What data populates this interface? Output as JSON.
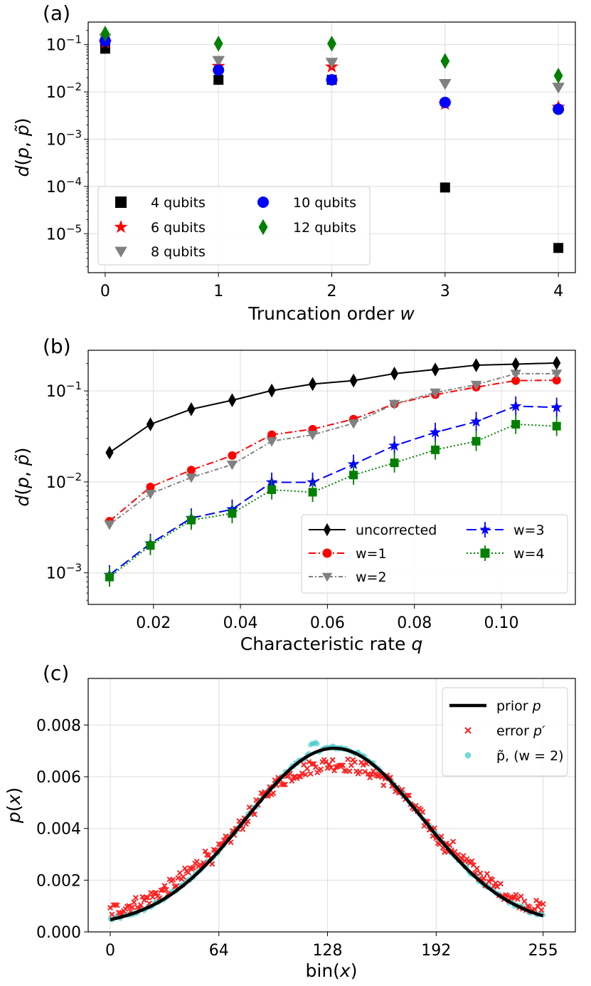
{
  "chart_data": [
    {
      "panel": "(a)",
      "type": "scatter",
      "xlabel_text": "Truncation order ",
      "xlabel_var": "w",
      "ylabel": "d(p, p̃)",
      "yscale": "log",
      "ylim": [
        1.5e-06,
        0.3
      ],
      "xlim": [
        -0.15,
        4.15
      ],
      "xticks": [
        0,
        1,
        2,
        3,
        4
      ],
      "yticks_exp": [
        -5,
        -4,
        -3,
        -2,
        -1
      ],
      "grid": true,
      "legend_position": "lower-left",
      "x": [
        0,
        1,
        2,
        3,
        4
      ],
      "series": [
        {
          "name": "4 qubits",
          "marker": "square",
          "color": "#000000",
          "values": [
            0.082,
            0.018,
            0.018,
            9.5e-05,
            5e-06
          ]
        },
        {
          "name": "6 qubits",
          "marker": "star",
          "color": "#ff0000",
          "values": [
            0.11,
            0.035,
            0.034,
            0.0055,
            0.0048
          ]
        },
        {
          "name": "8 qubits",
          "marker": "triangle",
          "color": "#808080",
          "values": [
            0.135,
            0.046,
            0.042,
            0.015,
            0.0125
          ]
        },
        {
          "name": "10 qubits",
          "marker": "circle",
          "color": "#0000ff",
          "values": [
            0.12,
            0.029,
            0.018,
            0.006,
            0.0043
          ]
        },
        {
          "name": "12 qubits",
          "marker": "diamond",
          "color": "#008000",
          "values": [
            0.17,
            0.105,
            0.105,
            0.045,
            0.022
          ]
        }
      ]
    },
    {
      "panel": "(b)",
      "type": "line",
      "xlabel_text": "Characteristic rate ",
      "xlabel_var": "q",
      "ylabel": "d(p, p̃)",
      "yscale": "log",
      "ylim": [
        0.00045,
        0.28
      ],
      "xlim": [
        0.005,
        0.117
      ],
      "xticks": [
        0.02,
        0.04,
        0.06,
        0.08,
        0.1
      ],
      "xtick_labels": [
        "0.02",
        "0.04",
        "0.06",
        "0.08",
        "0.10"
      ],
      "yticks_exp": [
        -3,
        -2,
        -1
      ],
      "grid": true,
      "legend_position": "lower-right",
      "x": [
        0.0099,
        0.0193,
        0.0287,
        0.0381,
        0.0472,
        0.0566,
        0.066,
        0.0754,
        0.0848,
        0.0942,
        0.1033,
        0.1127
      ],
      "series": [
        {
          "name": "uncorrected",
          "marker": "diamond",
          "color": "#000000",
          "dash": "",
          "values": [
            0.021,
            0.043,
            0.063,
            0.079,
            0.101,
            0.119,
            0.13,
            0.155,
            0.172,
            0.192,
            0.197,
            0.203
          ]
        },
        {
          "name": "w=1",
          "marker": "circle",
          "color": "#ff0000",
          "dash": "10,4,2,4",
          "values": [
            0.0037,
            0.0088,
            0.0135,
            0.0195,
            0.033,
            0.038,
            0.049,
            0.072,
            0.091,
            0.11,
            0.13,
            0.131
          ]
        },
        {
          "name": "w=2",
          "marker": "triangle",
          "color": "#808080",
          "dash": "6,3,2,3",
          "values": [
            0.0034,
            0.0074,
            0.0112,
            0.0155,
            0.028,
            0.033,
            0.044,
            0.072,
            0.096,
            0.117,
            0.155,
            0.155
          ]
        },
        {
          "name": "w=3",
          "marker": "star",
          "color": "#0000ff",
          "dash": "14,6",
          "values": [
            0.00095,
            0.0021,
            0.004,
            0.005,
            0.0099,
            0.0099,
            0.0156,
            0.025,
            0.035,
            0.046,
            0.068,
            0.066
          ]
        },
        {
          "name": "w=4",
          "marker": "square",
          "color": "#008000",
          "dash": "2,3",
          "values": [
            0.0009,
            0.002,
            0.0038,
            0.0045,
            0.0082,
            0.0077,
            0.0119,
            0.0162,
            0.0225,
            0.028,
            0.043,
            0.041
          ]
        }
      ]
    },
    {
      "panel": "(c)",
      "type": "scatter",
      "xlabel_text": "bin(",
      "xlabel_var": "x",
      "xlabel_tail": ")",
      "ylabel": "p(x)",
      "yscale": "linear",
      "xlim": [
        -13,
        274
      ],
      "ylim": [
        0,
        0.0098
      ],
      "xticks": [
        0,
        64,
        128,
        192,
        255
      ],
      "yticks": [
        0,
        0.002,
        0.004,
        0.006,
        0.008
      ],
      "ytick_labels": [
        "0.000",
        "0.002",
        "0.004",
        "0.006",
        "0.008"
      ],
      "grid": true,
      "legend_position": "top-right",
      "prior": {
        "mean": 132,
        "sigma": 52,
        "peak": 0.0071,
        "offset": 0.0002
      },
      "series": [
        {
          "name": "prior p",
          "kind": "line",
          "color": "#000000"
        },
        {
          "name": "error p′",
          "kind": "x-marker",
          "color": "#ff0000"
        },
        {
          "name": "p̃, (w = 2)",
          "kind": "dot",
          "color": "#40c8c8"
        }
      ]
    }
  ],
  "legend_labels": {
    "a": [
      "4 qubits",
      "6 qubits",
      "8 qubits",
      "10 qubits",
      "12 qubits"
    ],
    "b": [
      "uncorrected",
      "w=1",
      "w=2",
      "w=3",
      "w=4"
    ],
    "c_prior": "prior ",
    "c_prior_var": "p",
    "c_error": "error ",
    "c_error_var": "p′",
    "c_tilde": "p̃, (w = 2)"
  }
}
